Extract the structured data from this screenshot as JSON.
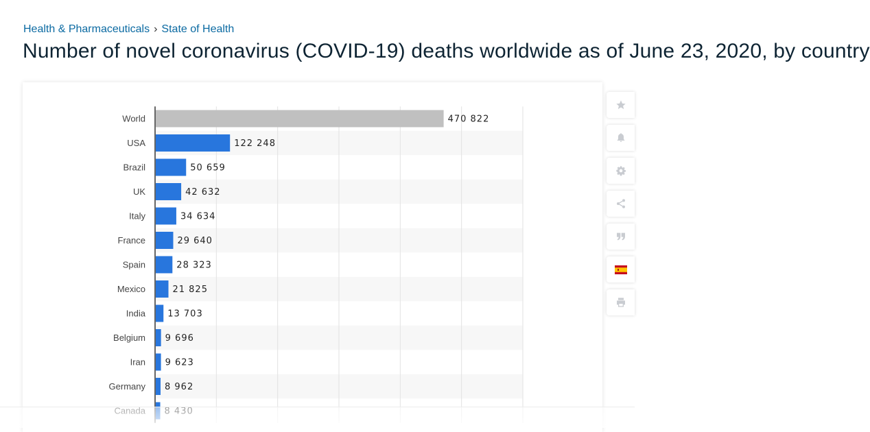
{
  "breadcrumb": {
    "items": [
      {
        "label": "Health & Pharmaceuticals"
      },
      {
        "label": "State of Health"
      }
    ],
    "separator": "›"
  },
  "page": {
    "title": "Number of novel coronavirus (COVID-19) deaths worldwide as of June 23, 2020, by country"
  },
  "sidebar": {
    "buttons": [
      {
        "icon": "star-icon"
      },
      {
        "icon": "bell-icon"
      },
      {
        "icon": "gear-icon"
      },
      {
        "icon": "share-icon"
      },
      {
        "icon": "quote-icon"
      },
      {
        "icon": "spain-flag-icon"
      },
      {
        "icon": "print-icon"
      }
    ]
  },
  "colors": {
    "highlight_bar": "#c0c0c0",
    "bar": "#2876dd",
    "breadcrumb_link": "#0b6aa2",
    "title": "#0e2433"
  },
  "chart_data": {
    "type": "bar",
    "orientation": "horizontal",
    "categories": [
      "World",
      "USA",
      "Brazil",
      "UK",
      "Italy",
      "France",
      "Spain",
      "Mexico",
      "India",
      "Belgium",
      "Iran",
      "Germany",
      "Canada"
    ],
    "values": [
      470822,
      122248,
      50659,
      42632,
      34634,
      29640,
      28323,
      21825,
      13703,
      9696,
      9623,
      8962,
      8430
    ],
    "value_labels": [
      "470 822",
      "122 248",
      "50 659",
      "42 632",
      "34 634",
      "29 640",
      "28 323",
      "21 825",
      "13 703",
      "9 696",
      "9 623",
      "8 962",
      "8 430"
    ],
    "xlim": [
      0,
      600000
    ],
    "grid": true,
    "highlight_category": "World"
  }
}
